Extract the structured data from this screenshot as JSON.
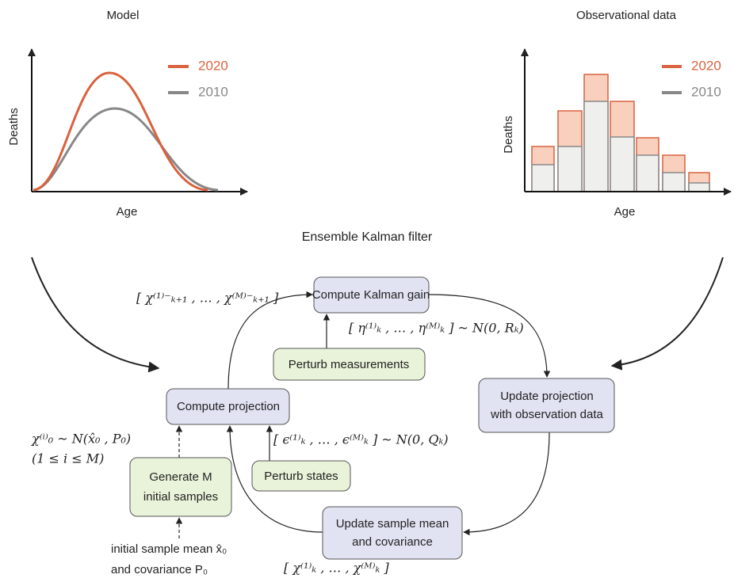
{
  "panels": [
    {
      "title": "Model",
      "y_label": "Deaths",
      "x_label": "Age",
      "legend": [
        "2020",
        "2010"
      ]
    },
    {
      "title": "Observational data",
      "y_label": "Deaths",
      "x_label": "Age",
      "legend": [
        "2020",
        "2010"
      ]
    }
  ],
  "title": "Ensemble Kalman filter",
  "nodes": [
    {
      "lines": [
        "Compute Kalman gain"
      ]
    },
    {
      "lines": [
        "Perturb measurements"
      ]
    },
    {
      "lines": [
        "Update projection",
        "with observation data"
      ]
    },
    {
      "lines": [
        "Compute projection"
      ]
    },
    {
      "lines": [
        "Perturb states"
      ]
    },
    {
      "lines": [
        "Generate M",
        "initial samples"
      ]
    },
    {
      "lines": [
        "Update sample mean",
        "and covariance"
      ]
    }
  ],
  "annotations": [
    "[ χ⁽¹⁾⁻ₖ₊₁ , … , χ⁽ᴹ⁾⁻ₖ₊₁ ]",
    "[ η⁽¹⁾ₖ , … , η⁽ᴹ⁾ₖ ] ~ N(0, Rₖ)",
    "χ⁽ⁱ⁾₀ ~ N(x̂₀ , P₀)",
    "(1 ≤ i ≤ M)",
    "[ ϵ⁽¹⁾ₖ , … , ϵ⁽ᴹ⁾ₖ ] ~ N(0, Qₖ)",
    "initial sample mean x̂₀",
    "and covariance P₀",
    "[ χ⁽¹⁾ₖ , … , χ⁽ᴹ⁾ₖ ]"
  ]
}
